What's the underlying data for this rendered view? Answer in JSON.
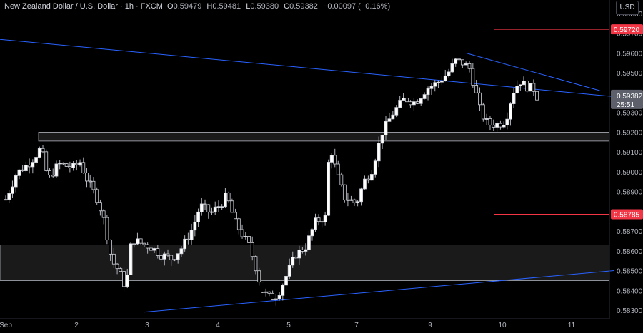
{
  "header": {
    "title": "New Zealand Dollar / U.S. Dollar · 1h · FXCM",
    "open_label": "O",
    "open": "0.59479",
    "high_label": "H",
    "high": "0.59481",
    "low_label": "L",
    "low": "0.59380",
    "close_label": "C",
    "close": "0.59382",
    "change": "−0.00097 (−0.16%)"
  },
  "currency": "USD",
  "last_price": {
    "value": "0.59382",
    "countdown": "25:51"
  },
  "colors": {
    "background": "#000000",
    "candle": "#d1d4dc",
    "trendline": "#2962ff",
    "level": "#f23645",
    "zone": "#1a1a1a"
  },
  "chart_data": {
    "type": "candlestick",
    "ylim": [
      0.5828,
      0.598
    ],
    "y_ticks": [
      "0.59800",
      "0.59700",
      "0.59600",
      "0.59500",
      "0.59400",
      "0.59300",
      "0.59200",
      "0.59100",
      "0.59000",
      "0.58900",
      "0.58800",
      "0.58700",
      "0.58600",
      "0.58500",
      "0.58400",
      "0.58300"
    ],
    "x_ticks": [
      {
        "label": "Sep",
        "t": 0
      },
      {
        "label": "2",
        "t": 1
      },
      {
        "label": "3",
        "t": 2
      },
      {
        "label": "4",
        "t": 3
      },
      {
        "label": "5",
        "t": 4
      },
      {
        "label": "7",
        "t": 5
      },
      {
        "label": "9",
        "t": 6
      },
      {
        "label": "10",
        "t": 7
      },
      {
        "label": "11",
        "t": 8
      }
    ],
    "levels": [
      {
        "label": "0.59720",
        "price": 0.5972
      },
      {
        "label": "0.58785",
        "price": 0.58785
      }
    ],
    "zones": [
      {
        "top": 0.592,
        "bottom": 0.59155
      },
      {
        "top": 0.5863,
        "bottom": 0.5845
      }
    ],
    "trendlines": [
      {
        "t1": -0.1,
        "p1": 0.5967,
        "t2": 8.6,
        "p2": 0.5938
      },
      {
        "t1": 1.95,
        "p1": 0.5829,
        "t2": 8.6,
        "p2": 0.585
      },
      {
        "t1": 6.5,
        "p1": 0.596,
        "t2": 8.4,
        "p2": 0.5941
      }
    ],
    "candles_anchor": [
      [
        0.0,
        0.5886
      ],
      [
        0.15,
        0.5899
      ],
      [
        0.35,
        0.5905
      ],
      [
        0.5,
        0.5912
      ],
      [
        0.6,
        0.5896
      ],
      [
        0.75,
        0.5904
      ],
      [
        0.95,
        0.5902
      ],
      [
        1.05,
        0.5905
      ],
      [
        1.15,
        0.5896
      ],
      [
        1.3,
        0.5886
      ],
      [
        1.4,
        0.5874
      ],
      [
        1.5,
        0.5855
      ],
      [
        1.6,
        0.585
      ],
      [
        1.7,
        0.5841
      ],
      [
        1.78,
        0.5866
      ],
      [
        1.9,
        0.5864
      ],
      [
        2.05,
        0.5862
      ],
      [
        2.2,
        0.5858
      ],
      [
        2.35,
        0.5856
      ],
      [
        2.5,
        0.5862
      ],
      [
        2.65,
        0.5872
      ],
      [
        2.75,
        0.5883
      ],
      [
        2.9,
        0.5879
      ],
      [
        3.05,
        0.5884
      ],
      [
        3.12,
        0.5888
      ],
      [
        3.25,
        0.5874
      ],
      [
        3.35,
        0.5868
      ],
      [
        3.45,
        0.5862
      ],
      [
        3.55,
        0.585
      ],
      [
        3.62,
        0.584
      ],
      [
        3.75,
        0.5836
      ],
      [
        3.85,
        0.5838
      ],
      [
        3.95,
        0.5846
      ],
      [
        4.1,
        0.5858
      ],
      [
        4.25,
        0.5862
      ],
      [
        4.4,
        0.5875
      ],
      [
        4.55,
        0.5877
      ],
      [
        4.6,
        0.5915
      ],
      [
        4.7,
        0.59
      ],
      [
        4.82,
        0.5887
      ],
      [
        5.0,
        0.5884
      ],
      [
        5.1,
        0.5895
      ],
      [
        5.2,
        0.59
      ],
      [
        5.35,
        0.592
      ],
      [
        5.5,
        0.593
      ],
      [
        5.65,
        0.5937
      ],
      [
        5.8,
        0.5935
      ],
      [
        5.95,
        0.5942
      ],
      [
        6.1,
        0.5945
      ],
      [
        6.25,
        0.595
      ],
      [
        6.35,
        0.5956
      ],
      [
        6.45,
        0.5955
      ],
      [
        6.55,
        0.5952
      ],
      [
        6.62,
        0.5942
      ],
      [
        6.7,
        0.593
      ],
      [
        6.8,
        0.5924
      ],
      [
        6.95,
        0.5924
      ],
      [
        7.05,
        0.5926
      ],
      [
        7.15,
        0.594
      ],
      [
        7.25,
        0.5946
      ],
      [
        7.35,
        0.5943
      ],
      [
        7.45,
        0.5942
      ],
      [
        7.5,
        0.5938
      ]
    ],
    "candle_count": 158
  }
}
